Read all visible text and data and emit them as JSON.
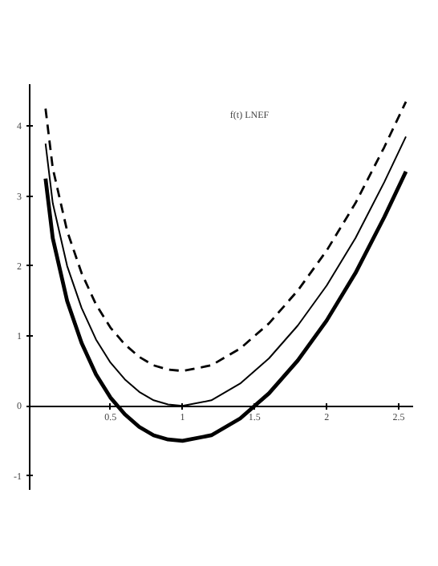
{
  "chart_data": {
    "type": "line",
    "title": "f(t) LNEF",
    "x": [
      0.05,
      0.1,
      0.2,
      0.3,
      0.4,
      0.5,
      0.6,
      0.7,
      0.8,
      0.9,
      1,
      1.2,
      1.4,
      1.6,
      1.8,
      2,
      2.2,
      2.4,
      2.55
    ],
    "series": [
      {
        "color": "#000000",
        "line_style": "solid",
        "values": [
          3.25,
          2.4,
          1.5,
          0.9,
          0.45,
          0.12,
          -0.12,
          -0.3,
          -0.42,
          -0.48,
          -0.5,
          -0.42,
          -0.18,
          0.18,
          0.65,
          1.22,
          1.9,
          2.7,
          3.35
        ]
      },
      {
        "color": "#000000",
        "line_style": "solid",
        "values": [
          3.75,
          2.9,
          2.0,
          1.4,
          0.95,
          0.62,
          0.38,
          0.2,
          0.08,
          0.02,
          0,
          0.08,
          0.32,
          0.68,
          1.15,
          1.72,
          2.4,
          3.2,
          3.85
        ]
      },
      {
        "color": "#000000",
        "line_style": "dashed",
        "values": [
          4.25,
          3.4,
          2.5,
          1.9,
          1.45,
          1.12,
          0.88,
          0.7,
          0.58,
          0.52,
          0.5,
          0.58,
          0.82,
          1.18,
          1.65,
          2.22,
          2.9,
          3.7,
          4.35
        ]
      }
    ],
    "xlim": [
      -0.06,
      2.6
    ],
    "ylim": [
      -1.2,
      4.6
    ],
    "xticks": [
      0.5,
      1,
      1.5,
      2,
      2.5
    ],
    "yticks": [
      -1,
      0,
      1,
      2,
      3,
      4
    ],
    "grid": false
  }
}
